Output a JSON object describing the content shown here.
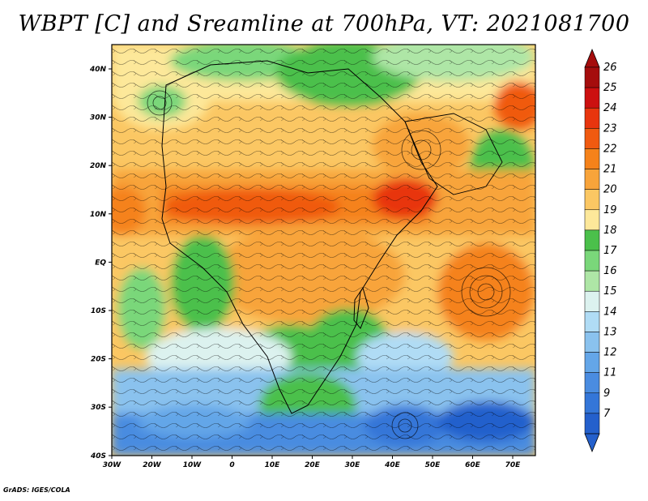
{
  "title": "WBPT [C] and Sreamline at 700hPa, VT: 2021081700",
  "credit": "GrADS: IGES/COLA",
  "map": {
    "lon_range": [
      -30,
      75
    ],
    "lat_range": [
      -40,
      45
    ],
    "lon_ticks": [
      "30W",
      "20W",
      "10W",
      "0",
      "10E",
      "20E",
      "30E",
      "40E",
      "50E",
      "60E",
      "70E"
    ],
    "lat_ticks": [
      "40N",
      "30N",
      "20N",
      "10N",
      "EQ",
      "10S",
      "20S",
      "30S",
      "40S"
    ]
  },
  "colorbar": {
    "labels": [
      "26",
      "25",
      "24",
      "23",
      "22",
      "21",
      "20",
      "19",
      "18",
      "17",
      "16",
      "15",
      "14",
      "13",
      "12",
      "11",
      "9",
      "7"
    ],
    "colors": [
      "#a50d0d",
      "#cc1010",
      "#e8350e",
      "#f05a10",
      "#f5821a",
      "#f8a43a",
      "#fbc763",
      "#fde89a",
      "#4bc04b",
      "#7ad77a",
      "#aee6a6",
      "#dcf2ef",
      "#b0dcf5",
      "#8ac2ee",
      "#64a6e8",
      "#4a8ce0",
      "#3476d8",
      "#2460cc"
    ]
  },
  "chart_data": {
    "type": "heatmap",
    "variable": "WBPT [C]",
    "overlay": "Sreamline",
    "level": "700hPa",
    "valid_time": "2021081700",
    "colorbar_min": 7,
    "colorbar_max": 26
  }
}
